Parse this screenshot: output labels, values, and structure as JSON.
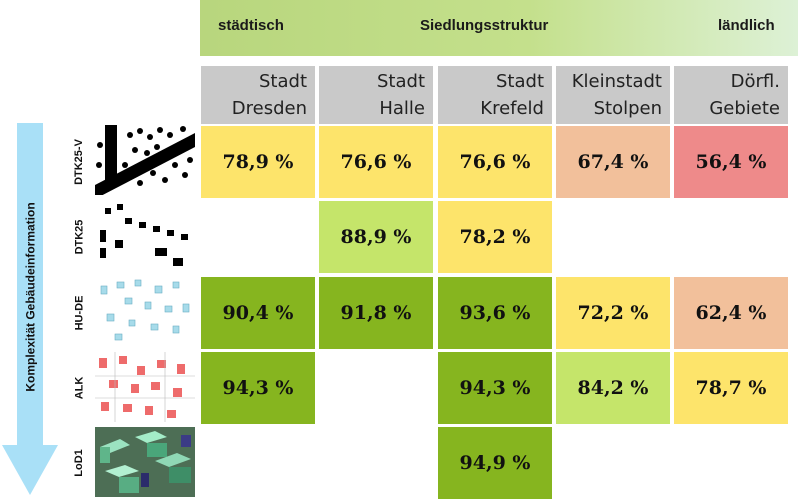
{
  "header": {
    "left": "städtisch",
    "center": "Siedlungsstruktur",
    "right": "ländlich"
  },
  "y_axis_label": "Komplexität Gebäudeinformation",
  "colors": {
    "yellow": "#fde46b",
    "light_green": "#c5e56a",
    "green": "#86b51f",
    "peach": "#f2c09b",
    "red": "#ee8a8a"
  },
  "chart_data": {
    "type": "table",
    "columns": [
      [
        "Stadt",
        "Dresden"
      ],
      [
        "Stadt",
        "Halle"
      ],
      [
        "Stadt",
        "Krefeld"
      ],
      [
        "Kleinstadt",
        "Stolpen"
      ],
      [
        "Dörfl.",
        "Gebiete"
      ]
    ],
    "rows": [
      "DTK25-V",
      "DTK25",
      "HU-DE",
      "ALK",
      "LoD1"
    ],
    "values": [
      [
        "78,9 %",
        "76,6 %",
        "76,6 %",
        "67,4 %",
        "56,4 %"
      ],
      [
        null,
        "88,9 %",
        "78,2 %",
        null,
        null
      ],
      [
        "90,4 %",
        "91,8 %",
        "93,6 %",
        "72,2 %",
        "62,4 %"
      ],
      [
        "94,3 %",
        null,
        "94,3 %",
        "84,2 %",
        "78,7 %"
      ],
      [
        null,
        null,
        "94,9 %",
        null,
        null
      ]
    ],
    "cell_colors": [
      [
        "yellow",
        "yellow",
        "yellow",
        "peach",
        "red"
      ],
      [
        null,
        "light_green",
        "yellow",
        null,
        null
      ],
      [
        "green",
        "green",
        "green",
        "yellow",
        "peach"
      ],
      [
        "green",
        null,
        "green",
        "light_green",
        "yellow"
      ],
      [
        null,
        null,
        "green",
        null,
        null
      ]
    ]
  }
}
